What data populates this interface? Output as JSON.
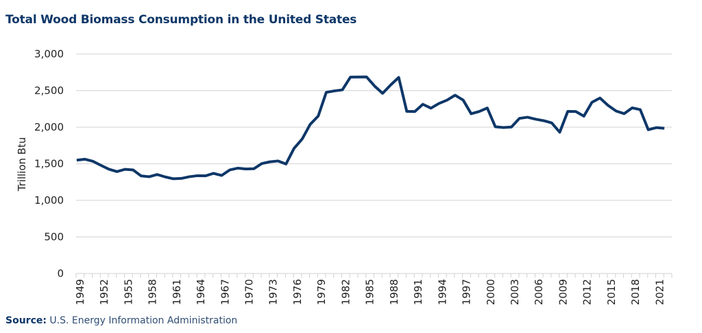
{
  "chart_data": {
    "type": "line",
    "title": "Total Wood Biomass Consumption in the United States",
    "xlabel": "",
    "ylabel": "Trillion Btu",
    "ylim": [
      0,
      3000
    ],
    "yticks": [
      "0",
      "500",
      "1,000",
      "1,500",
      "2,000",
      "2,500",
      "3,000"
    ],
    "ytick_values": [
      0,
      500,
      1000,
      1500,
      2000,
      2500,
      3000
    ],
    "grid": "horizontal",
    "line_color": "#0e3768",
    "x": [
      1949,
      1950,
      1951,
      1952,
      1953,
      1954,
      1955,
      1956,
      1957,
      1958,
      1959,
      1960,
      1961,
      1962,
      1963,
      1964,
      1965,
      1966,
      1967,
      1968,
      1969,
      1970,
      1971,
      1972,
      1973,
      1974,
      1975,
      1976,
      1977,
      1978,
      1979,
      1980,
      1981,
      1982,
      1983,
      1984,
      1985,
      1986,
      1987,
      1988,
      1989,
      1990,
      1991,
      1992,
      1993,
      1994,
      1995,
      1996,
      1997,
      1998,
      1999,
      2000,
      2001,
      2002,
      2003,
      2004,
      2005,
      2006,
      2007,
      2008,
      2009,
      2010,
      2011,
      2012,
      2013,
      2014,
      2015,
      2016,
      2017,
      2018,
      2019,
      2020,
      2021,
      2022
    ],
    "xtick_labels": [
      "1949",
      "1952",
      "1955",
      "1958",
      "1961",
      "1964",
      "1967",
      "1970",
      "1973",
      "1976",
      "1979",
      "1982",
      "1985",
      "1988",
      "1991",
      "1994",
      "1997",
      "2000",
      "2003",
      "2006",
      "2009",
      "2012",
      "2015",
      "2018",
      "2021"
    ],
    "values": [
      1549,
      1562,
      1535,
      1479,
      1426,
      1393,
      1424,
      1416,
      1334,
      1323,
      1353,
      1320,
      1295,
      1300,
      1323,
      1337,
      1335,
      1369,
      1340,
      1415,
      1440,
      1429,
      1432,
      1503,
      1527,
      1538,
      1497,
      1711,
      1837,
      2038,
      2152,
      2476,
      2496,
      2510,
      2684,
      2686,
      2687,
      2562,
      2463,
      2577,
      2680,
      2216,
      2214,
      2313,
      2260,
      2324,
      2370,
      2437,
      2371,
      2184,
      2214,
      2262,
      2006,
      1995,
      2002,
      2121,
      2136,
      2109,
      2089,
      2059,
      1931,
      2216,
      2214,
      2151,
      2340,
      2398,
      2298,
      2221,
      2185,
      2264,
      2240,
      1965,
      1994,
      1985
    ]
  },
  "source": {
    "label": "Source:",
    "text": "U.S. Energy Information Administration"
  }
}
